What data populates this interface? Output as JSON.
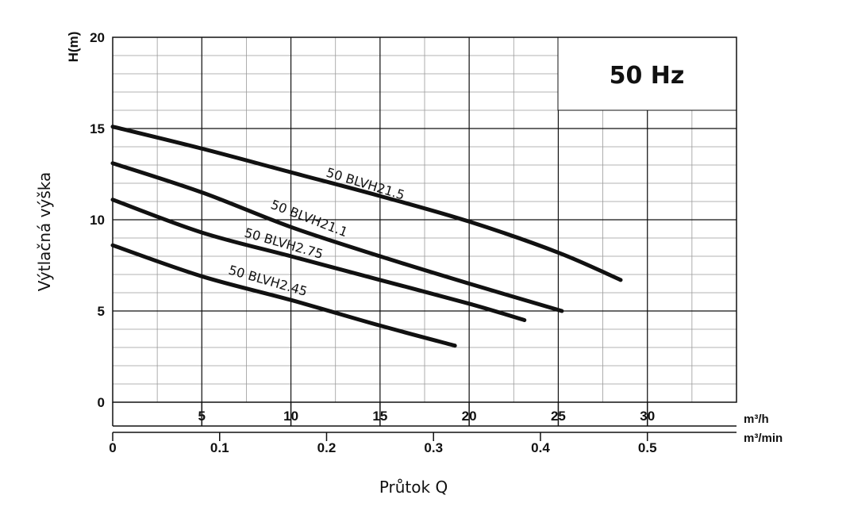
{
  "chart_data": {
    "type": "line",
    "frequency_label": "50 Hz",
    "ylabel": "Výtlačná výška",
    "ylabel_unit": "H(m)",
    "xlabel": "Průtok Q",
    "x_unit_primary": "m³/h",
    "x_unit_secondary": "m³/min",
    "xlim": [
      0,
      35
    ],
    "ylim": [
      0,
      20
    ],
    "x_ticks_primary": [
      "5",
      "10",
      "15",
      "20",
      "25",
      "30"
    ],
    "x_ticks_secondary": [
      "0",
      "0.1",
      "0.2",
      "0.3",
      "0.4",
      "0.5"
    ],
    "x_ticks_secondary_values": [
      0,
      0.1,
      0.2,
      0.3,
      0.4,
      0.5
    ],
    "y_ticks": [
      "0",
      "5",
      "10",
      "15",
      "20"
    ],
    "grid": true,
    "series": [
      {
        "name": "50 BLVH21.5",
        "x": [
          0,
          5,
          10,
          15,
          20,
          25,
          28.5
        ],
        "y": [
          15.1,
          13.9,
          12.6,
          11.3,
          9.9,
          8.2,
          6.7
        ]
      },
      {
        "name": "50 BLVH21.1",
        "x": [
          0,
          5,
          10,
          15,
          20,
          25.2
        ],
        "y": [
          13.1,
          11.5,
          9.6,
          8.0,
          6.5,
          5.0
        ]
      },
      {
        "name": "50 BLVH2.75",
        "x": [
          0,
          5,
          10,
          15,
          20,
          23.1
        ],
        "y": [
          11.1,
          9.3,
          8.0,
          6.7,
          5.4,
          4.5
        ]
      },
      {
        "name": "50 BLVH2.45",
        "x": [
          0,
          5,
          10,
          15,
          19.2
        ],
        "y": [
          8.6,
          6.9,
          5.6,
          4.2,
          3.1
        ]
      }
    ]
  }
}
